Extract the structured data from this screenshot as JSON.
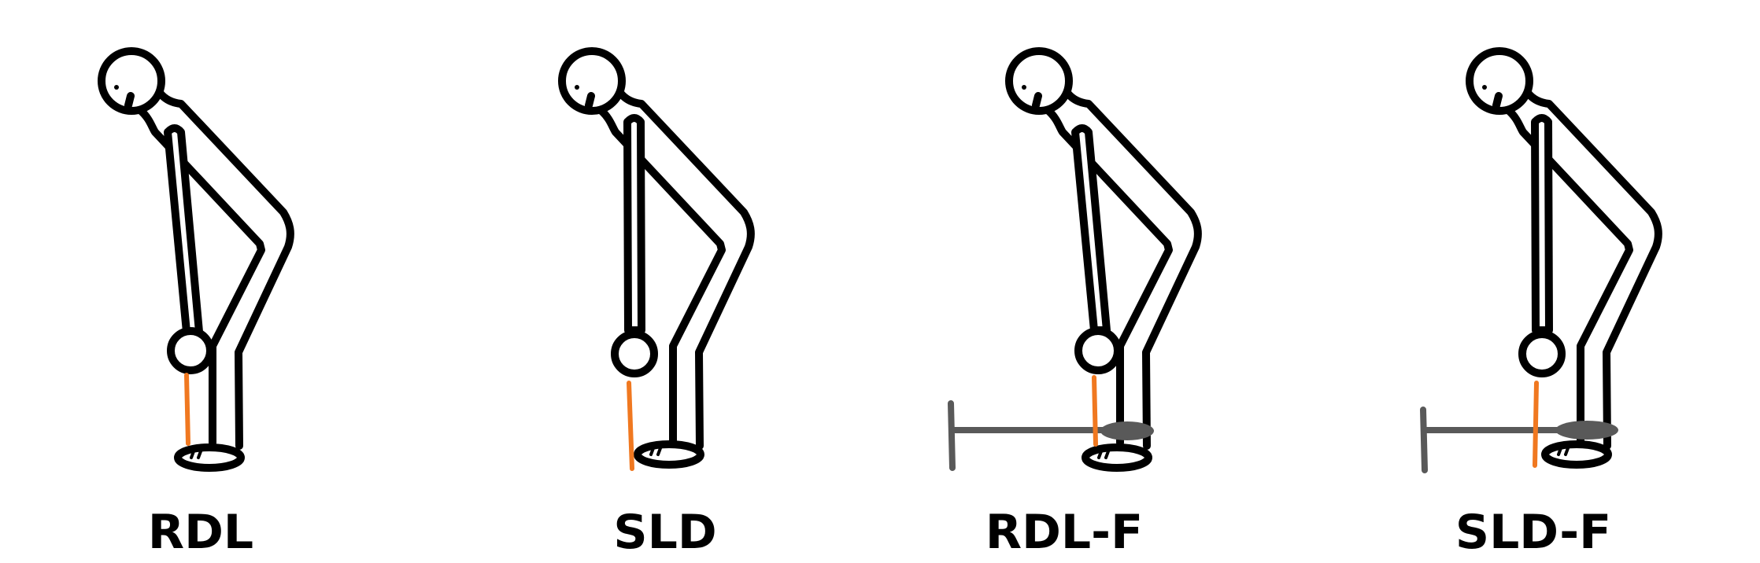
{
  "panels": [
    {
      "label": "RDL",
      "bar": "none"
    },
    {
      "label": "SLD",
      "bar": "none"
    },
    {
      "label": "RDL-F",
      "bar": "flywheel"
    },
    {
      "label": "SLD-F",
      "bar": "flywheel"
    }
  ],
  "colors": {
    "outline": "#000000",
    "arm_fill": "#ffffff",
    "shin_line": "#f07820",
    "device": "#595959"
  }
}
